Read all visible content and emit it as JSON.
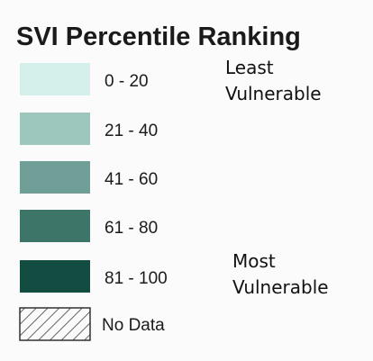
{
  "legend": {
    "title": "SVI Percentile Ranking",
    "items": [
      {
        "label": "0 - 20",
        "color": "#d5efeb"
      },
      {
        "label": "21 - 40",
        "color": "#9dc6bd"
      },
      {
        "label": "41 - 60",
        "color": "#6f9f96"
      },
      {
        "label": "61 - 80",
        "color": "#3e7569"
      },
      {
        "label": "81 - 100",
        "color": "#134c40"
      }
    ],
    "no_data": {
      "label": "No Data"
    },
    "annotations": [
      {
        "lines": [
          "Least",
          "Vulnerable"
        ]
      },
      {
        "lines": [
          "Most",
          "Vulnerable"
        ]
      }
    ]
  }
}
